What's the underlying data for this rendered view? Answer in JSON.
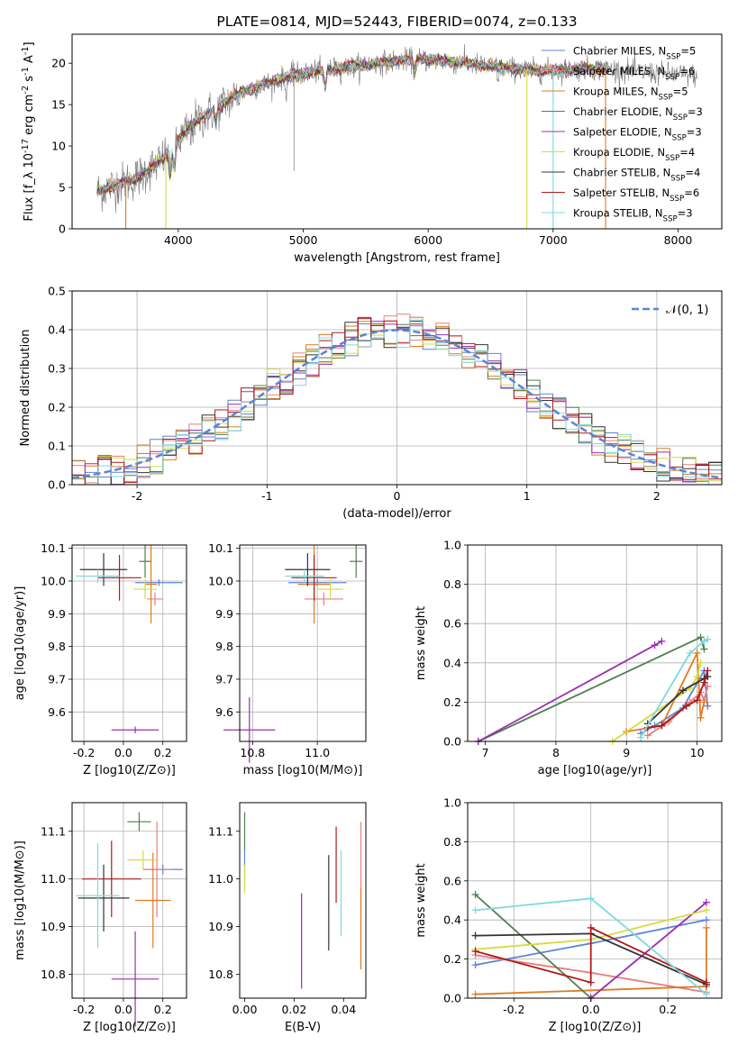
{
  "chart_data": [
    {
      "id": "spectrum",
      "type": "line",
      "title": "PLATE=0814, MJD=52443, FIBERID=0074, z=0.133",
      "xlabel": "wavelength [Angstrom, rest frame]",
      "ylabel": "Flux [f_λ 10^-17 erg cm^-2 s^-1 A^-1]",
      "xlim": [
        3150,
        8350
      ],
      "ylim": [
        0,
        23.5
      ],
      "xticks": [
        4000,
        5000,
        6000,
        7000,
        8000
      ],
      "yticks": [
        0,
        5,
        10,
        15,
        20
      ],
      "grid": false,
      "legend_position": "top-right",
      "legend": [
        {
          "label": "Chabrier MILES, N_SSP=5",
          "color": "#5b84d8"
        },
        {
          "label": "Salpeter MILES, N_SSP=6",
          "color": "#e87f7f"
        },
        {
          "label": "Kroupa MILES, N_SSP=5",
          "color": "#e07b20"
        },
        {
          "label": "Chabrier ELODIE, N_SSP=3",
          "color": "#4f7f4f"
        },
        {
          "label": "Salpeter ELODIE, N_SSP=3",
          "color": "#9b2fb0"
        },
        {
          "label": "Kroupa ELODIE, N_SSP=4",
          "color": "#d4dc40"
        },
        {
          "label": "Chabrier STELIB, N_SSP=4",
          "color": "#333333"
        },
        {
          "label": "Salpeter STELIB, N_SSP=6",
          "color": "#b01a1a"
        },
        {
          "label": "Kroupa STELIB, N_SSP=3",
          "color": "#7fd8e0"
        }
      ],
      "continuum": [
        [
          3350,
          4.5
        ],
        [
          3500,
          5.3
        ],
        [
          3650,
          6.0
        ],
        [
          3800,
          7.5
        ],
        [
          3950,
          9.5
        ],
        [
          4100,
          12.5
        ],
        [
          4300,
          14.5
        ],
        [
          4500,
          16.5
        ],
        [
          4700,
          17.5
        ],
        [
          4900,
          18.5
        ],
        [
          5100,
          19.0
        ],
        [
          5300,
          19.4
        ],
        [
          5500,
          19.8
        ],
        [
          5700,
          20.2
        ],
        [
          5900,
          20.5
        ],
        [
          6100,
          20.3
        ],
        [
          6300,
          20.0
        ],
        [
          6500,
          19.6
        ],
        [
          6700,
          19.3
        ],
        [
          6900,
          19.1
        ],
        [
          7100,
          19.2
        ],
        [
          7300,
          19.4
        ],
        [
          7500,
          19.2
        ],
        [
          7800,
          18.8
        ],
        [
          8150,
          18.5
        ]
      ],
      "data_range": [
        3350,
        8150
      ],
      "model_range": [
        3350,
        7450
      ]
    },
    {
      "id": "residuals",
      "type": "histogram",
      "xlabel": "(data-model)/error",
      "ylabel": "Normed distribution",
      "xlim": [
        -2.5,
        2.5
      ],
      "ylim": [
        0,
        0.5
      ],
      "xticks": [
        -2,
        -1,
        0,
        1,
        2
      ],
      "yticks": [
        0.0,
        0.1,
        0.2,
        0.3,
        0.4,
        0.5
      ],
      "grid": true,
      "legend_position": "top-right",
      "legend": [
        {
          "label": "𝒩(0, 1)",
          "color": "#5b84d8",
          "style": "dashed"
        }
      ],
      "bin_width": 0.1
    },
    {
      "id": "age-vs-Z",
      "type": "scatter",
      "xlabel": "Z [log10(Z/Z⊙)]",
      "ylabel": "age  [log10(age/yr)]",
      "xlim": [
        -0.26,
        0.32
      ],
      "ylim": [
        9.51,
        10.11
      ],
      "xticks": [
        -0.2,
        0.0,
        0.2
      ],
      "yticks": [
        9.6,
        9.7,
        9.8,
        9.9,
        10.0,
        10.1
      ],
      "grid": true,
      "points": [
        {
          "color": "#5b84d8",
          "x": 0.18,
          "xerr": 0.12,
          "y": 9.995,
          "yerr": 0.01
        },
        {
          "color": "#e87f7f",
          "x": 0.16,
          "xerr": 0.04,
          "y": 9.945,
          "yerr": 0.02
        },
        {
          "color": "#e07b20",
          "x": 0.14,
          "xerr": 0.03,
          "y": 9.99,
          "yerr": 0.12
        },
        {
          "color": "#4f7f4f",
          "x": 0.11,
          "xerr": 0.03,
          "y": 10.06,
          "yerr": 0.05
        },
        {
          "color": "#9b2fb0",
          "x": 0.06,
          "xerr": 0.12,
          "y": 9.545,
          "yerr": 0.01
        },
        {
          "color": "#d4dc40",
          "x": 0.11,
          "xerr": 0.06,
          "y": 9.975,
          "yerr": 0.03
        },
        {
          "color": "#333333",
          "x": -0.1,
          "xerr": 0.12,
          "y": 10.035,
          "yerr": 0.05
        },
        {
          "color": "#b01a1a",
          "x": -0.02,
          "xerr": 0.11,
          "y": 10.01,
          "yerr": 0.07
        },
        {
          "color": "#7fd8e0",
          "x": -0.13,
          "xerr": 0.11,
          "y": 10.015,
          "yerr": 0.02
        }
      ]
    },
    {
      "id": "age-vs-mass",
      "type": "scatter",
      "xlabel": "mass [log10(M/M⊙)]",
      "ylabel": "",
      "xlim": [
        10.76,
        11.15
      ],
      "ylim": [
        9.51,
        10.11
      ],
      "xticks": [
        10.8,
        11.0
      ],
      "yticks": [
        9.6,
        9.7,
        9.8,
        9.9,
        10.0,
        10.1
      ],
      "grid": true,
      "points": [
        {
          "color": "#5b84d8",
          "x": 11.0,
          "xerr": 0.09,
          "y": 9.995,
          "yerr": 0.01
        },
        {
          "color": "#e87f7f",
          "x": 11.02,
          "xerr": 0.06,
          "y": 9.945,
          "yerr": 0.02
        },
        {
          "color": "#e07b20",
          "x": 10.99,
          "xerr": 0.05,
          "y": 9.99,
          "yerr": 0.12
        },
        {
          "color": "#4f7f4f",
          "x": 11.12,
          "xerr": 0.02,
          "y": 10.06,
          "yerr": 0.05
        },
        {
          "color": "#9b2fb0",
          "x": 10.79,
          "xerr": 0.08,
          "y": 9.545,
          "yerr": 0.1
        },
        {
          "color": "#d4dc40",
          "x": 11.04,
          "xerr": 0.04,
          "y": 9.975,
          "yerr": 0.03
        },
        {
          "color": "#333333",
          "x": 10.97,
          "xerr": 0.07,
          "y": 10.035,
          "yerr": 0.05
        },
        {
          "color": "#b01a1a",
          "x": 10.99,
          "xerr": 0.07,
          "y": 10.01,
          "yerr": 0.07
        },
        {
          "color": "#7fd8e0",
          "x": 10.96,
          "xerr": 0.06,
          "y": 10.015,
          "yerr": 0.02
        }
      ]
    },
    {
      "id": "mass-weight-vs-age",
      "type": "line",
      "xlabel": "age  [log10(age/yr)]",
      "ylabel": "mass weight",
      "xlim": [
        6.75,
        10.35
      ],
      "ylim": [
        0,
        1
      ],
      "xticks": [
        7,
        8,
        9,
        10
      ],
      "yticks": [
        0.0,
        0.2,
        0.4,
        0.6,
        0.8,
        1.0
      ],
      "grid": true,
      "series": [
        {
          "color": "#5b84d8",
          "points": [
            [
              9.2,
              0.04
            ],
            [
              9.4,
              0.08
            ],
            [
              9.8,
              0.17
            ],
            [
              10.1,
              0.36
            ],
            [
              10.15,
              0.18
            ]
          ]
        },
        {
          "color": "#e87f7f",
          "points": [
            [
              9.3,
              0.03
            ],
            [
              9.6,
              0.1
            ],
            [
              9.9,
              0.2
            ],
            [
              10.05,
              0.25
            ],
            [
              10.1,
              0.21
            ],
            [
              10.15,
              0.28
            ]
          ]
        },
        {
          "color": "#e07b20",
          "points": [
            [
              9.0,
              0.05
            ],
            [
              9.5,
              0.08
            ],
            [
              10.0,
              0.45
            ],
            [
              10.05,
              0.12
            ],
            [
              10.1,
              0.2
            ]
          ]
        },
        {
          "color": "#4f7f4f",
          "points": [
            [
              6.9,
              0.0
            ],
            [
              10.05,
              0.53
            ],
            [
              10.1,
              0.47
            ]
          ]
        },
        {
          "color": "#9b2fb0",
          "points": [
            [
              6.9,
              0.0
            ],
            [
              9.4,
              0.49
            ],
            [
              9.5,
              0.51
            ]
          ]
        },
        {
          "color": "#d4dc40",
          "points": [
            [
              8.8,
              0.0
            ],
            [
              9.9,
              0.27
            ],
            [
              10.0,
              0.33
            ],
            [
              10.05,
              0.4
            ]
          ]
        },
        {
          "color": "#333333",
          "points": [
            [
              9.3,
              0.09
            ],
            [
              9.8,
              0.26
            ],
            [
              10.1,
              0.32
            ],
            [
              10.15,
              0.33
            ]
          ]
        },
        {
          "color": "#b01a1a",
          "points": [
            [
              9.3,
              0.07
            ],
            [
              9.5,
              0.08
            ],
            [
              9.85,
              0.18
            ],
            [
              10.0,
              0.21
            ],
            [
              10.1,
              0.3
            ],
            [
              10.15,
              0.36
            ]
          ]
        },
        {
          "color": "#7fd8e0",
          "points": [
            [
              9.2,
              0.02
            ],
            [
              9.9,
              0.45
            ],
            [
              10.1,
              0.51
            ],
            [
              10.15,
              0.52
            ]
          ]
        }
      ]
    },
    {
      "id": "mass-vs-Z",
      "type": "scatter",
      "xlabel": "Z [log10(Z/Z⊙)]",
      "ylabel": "mass [log10(M/M⊙)]",
      "xlim": [
        -0.26,
        0.32
      ],
      "ylim": [
        10.75,
        11.16
      ],
      "xticks": [
        -0.2,
        0.0,
        0.2
      ],
      "yticks": [
        10.8,
        10.9,
        11.0,
        11.1
      ],
      "grid": true,
      "points": [
        {
          "color": "#5b84d8",
          "x": 0.2,
          "xerr": 0.1,
          "y": 11.02,
          "yerr": 0.01
        },
        {
          "color": "#e87f7f",
          "x": 0.17,
          "xerr": 0.07,
          "y": 11.02,
          "yerr": 0.1
        },
        {
          "color": "#e07b20",
          "x": 0.15,
          "xerr": 0.09,
          "y": 10.955,
          "yerr": 0.1
        },
        {
          "color": "#4f7f4f",
          "x": 0.08,
          "xerr": 0.06,
          "y": 11.12,
          "yerr": 0.02
        },
        {
          "color": "#9b2fb0",
          "x": 0.06,
          "xerr": 0.12,
          "y": 10.79,
          "yerr": 0.1
        },
        {
          "color": "#d4dc40",
          "x": 0.1,
          "xerr": 0.08,
          "y": 11.04,
          "yerr": 0.02
        },
        {
          "color": "#333333",
          "x": -0.1,
          "xerr": 0.13,
          "y": 10.96,
          "yerr": 0.07
        },
        {
          "color": "#b01a1a",
          "x": -0.06,
          "xerr": 0.15,
          "y": 11.0,
          "yerr": 0.08
        },
        {
          "color": "#7fd8e0",
          "x": -0.13,
          "xerr": 0.11,
          "y": 10.965,
          "yerr": 0.11
        }
      ]
    },
    {
      "id": "mass-vs-ebv",
      "type": "scatter",
      "xlabel": "E(B-V)",
      "ylabel": "",
      "xlim": [
        -0.002,
        0.049
      ],
      "ylim": [
        10.75,
        11.16
      ],
      "xticks": [
        0.0,
        0.02,
        0.04
      ],
      "yticks": [
        10.8,
        10.9,
        11.0,
        11.1
      ],
      "grid": false,
      "points": [
        {
          "color": "#5b84d8",
          "x": 0.0,
          "y": 11.03,
          "yerr": 0.03
        },
        {
          "color": "#e87f7f",
          "x": 0.047,
          "y": 11.02,
          "yerr": 0.1
        },
        {
          "color": "#e07b20",
          "x": 0.047,
          "y": 10.895,
          "yerr": 0.085
        },
        {
          "color": "#4f7f4f",
          "x": 0.0,
          "y": 11.1,
          "yerr": 0.04
        },
        {
          "color": "#9b2fb0",
          "x": 0.023,
          "y": 10.87,
          "yerr": 0.1
        },
        {
          "color": "#d4dc40",
          "x": 0.0,
          "y": 11.0,
          "yerr": 0.03
        },
        {
          "color": "#333333",
          "x": 0.034,
          "y": 10.95,
          "yerr": 0.1
        },
        {
          "color": "#b01a1a",
          "x": 0.037,
          "y": 11.03,
          "yerr": 0.08
        },
        {
          "color": "#7fd8e0",
          "x": 0.039,
          "y": 10.97,
          "yerr": 0.09
        }
      ]
    },
    {
      "id": "mass-weight-vs-Z",
      "type": "line",
      "xlabel": "Z [log10(Z/Z⊙)]",
      "ylabel": "mass weight",
      "xlim": [
        -0.32,
        0.34
      ],
      "ylim": [
        0,
        1
      ],
      "xticks": [
        -0.2,
        0.0,
        0.2
      ],
      "yticks": [
        0.0,
        0.2,
        0.4,
        0.6,
        0.8,
        1.0
      ],
      "grid": true,
      "series": [
        {
          "color": "#5b84d8",
          "points": [
            [
              -0.3,
              0.17
            ],
            [
              0.0,
              0.28
            ],
            [
              0.3,
              0.4
            ]
          ]
        },
        {
          "color": "#e87f7f",
          "points": [
            [
              -0.3,
              0.22
            ],
            [
              0.0,
              0.13
            ],
            [
              0.3,
              0.03
            ]
          ]
        },
        {
          "color": "#e07b20",
          "points": [
            [
              -0.3,
              0.02
            ],
            [
              0.3,
              0.06
            ],
            [
              0.3,
              0.36
            ]
          ]
        },
        {
          "color": "#4f7f4f",
          "points": [
            [
              -0.3,
              0.53
            ],
            [
              0.0,
              0.0
            ]
          ]
        },
        {
          "color": "#9b2fb0",
          "points": [
            [
              0.0,
              0.0
            ],
            [
              0.3,
              0.49
            ]
          ]
        },
        {
          "color": "#d4dc40",
          "points": [
            [
              -0.3,
              0.25
            ],
            [
              0.0,
              0.3
            ],
            [
              0.3,
              0.45
            ]
          ]
        },
        {
          "color": "#333333",
          "points": [
            [
              -0.3,
              0.32
            ],
            [
              0.0,
              0.33
            ],
            [
              0.3,
              0.07
            ]
          ]
        },
        {
          "color": "#b01a1a",
          "points": [
            [
              -0.3,
              0.24
            ],
            [
              0.0,
              0.08
            ],
            [
              0.0,
              0.36
            ],
            [
              0.3,
              0.08
            ]
          ]
        },
        {
          "color": "#7fd8e0",
          "points": [
            [
              -0.3,
              0.45
            ],
            [
              0.0,
              0.51
            ],
            [
              0.3,
              0.02
            ]
          ]
        }
      ]
    }
  ]
}
